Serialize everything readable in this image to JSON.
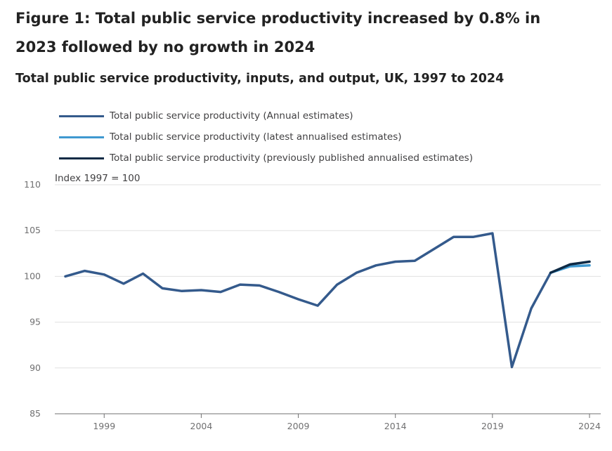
{
  "title": "Figure 1: Total public service productivity increased by 0.8% in 2023 followed by no growth in 2024",
  "subtitle": "Total public service productivity, inputs, and output, UK, 1997 to 2024",
  "legend": [
    {
      "label": "Total public service productivity (Annual estimates)",
      "color": "#345a8c"
    },
    {
      "label": "Total public service productivity (latest annualised estimates)",
      "color": "#3f99d0"
    },
    {
      "label": "Total public service productivity (previously published annualised estimates)",
      "color": "#0e2a45"
    }
  ],
  "chart_data": {
    "type": "line",
    "title": "Total public service productivity, inputs, and output, UK, 1997 to 2024",
    "ylabel": "Index 1997 = 100",
    "xlabel": "",
    "ylim": [
      85,
      110
    ],
    "xlim": [
      1997,
      2024
    ],
    "yticks": [
      85,
      90,
      95,
      100,
      105,
      110
    ],
    "xticks": [
      1999,
      2004,
      2009,
      2014,
      2019,
      2024
    ],
    "grid": true,
    "legend_position": "top-left",
    "series": [
      {
        "name": "Total public service productivity (Annual estimates)",
        "color": "#345a8c",
        "x": [
          1997,
          1998,
          1999,
          2000,
          2001,
          2002,
          2003,
          2004,
          2005,
          2006,
          2007,
          2008,
          2009,
          2010,
          2011,
          2012,
          2013,
          2014,
          2015,
          2016,
          2017,
          2018,
          2019,
          2020,
          2021,
          2022
        ],
        "y": [
          100.0,
          100.6,
          100.2,
          99.2,
          100.3,
          98.7,
          98.4,
          98.5,
          98.3,
          99.1,
          99.0,
          98.3,
          97.5,
          96.8,
          99.1,
          100.4,
          101.2,
          101.6,
          101.7,
          103.0,
          104.3,
          104.3,
          104.7,
          90.1,
          96.5,
          100.4
        ]
      },
      {
        "name": "Total public service productivity (latest annualised estimates)",
        "color": "#3f99d0",
        "x": [
          2022,
          2023,
          2024
        ],
        "y": [
          100.4,
          101.1,
          101.2
        ]
      },
      {
        "name": "Total public service productivity (previously published annualised estimates)",
        "color": "#0e2a45",
        "x": [
          2022,
          2023,
          2024
        ],
        "y": [
          100.4,
          101.3,
          101.6
        ]
      }
    ]
  }
}
